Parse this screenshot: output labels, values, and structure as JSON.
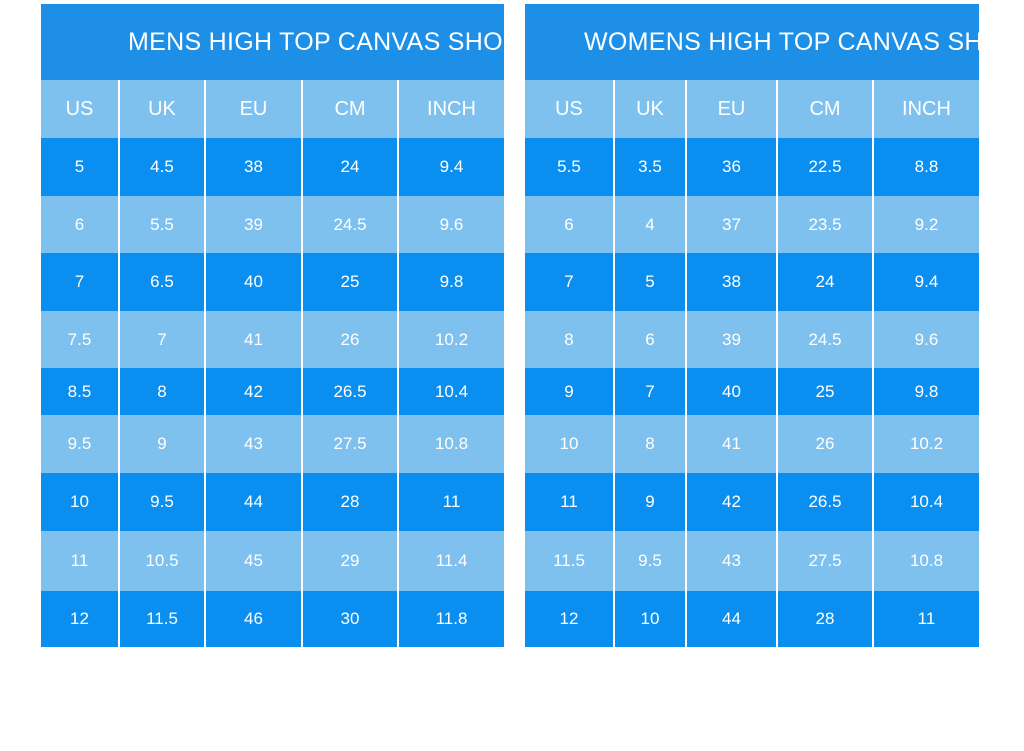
{
  "mens": {
    "title": "MENS HIGH TOP CANVAS SHOE",
    "columns": [
      "US",
      "UK",
      "EU",
      "CM",
      "INCH"
    ],
    "rows": [
      [
        "5",
        "4.5",
        "38",
        "24",
        "9.4"
      ],
      [
        "6",
        "5.5",
        "39",
        "24.5",
        "9.6"
      ],
      [
        "7",
        "6.5",
        "40",
        "25",
        "9.8"
      ],
      [
        "7.5",
        "7",
        "41",
        "26",
        "10.2"
      ],
      [
        "8.5",
        "8",
        "42",
        "26.5",
        "10.4"
      ],
      [
        "9.5",
        "9",
        "43",
        "27.5",
        "10.8"
      ],
      [
        "10",
        "9.5",
        "44",
        "28",
        "11"
      ],
      [
        "11",
        "10.5",
        "45",
        "29",
        "11.4"
      ],
      [
        "12",
        "11.5",
        "46",
        "30",
        "11.8"
      ]
    ]
  },
  "womens": {
    "title": "WOMENS HIGH TOP CANVAS SHOE",
    "columns": [
      "US",
      "UK",
      "EU",
      "CM",
      "INCH"
    ],
    "rows": [
      [
        "5.5",
        "3.5",
        "36",
        "22.5",
        "8.8"
      ],
      [
        "6",
        "4",
        "37",
        "23.5",
        "9.2"
      ],
      [
        "7",
        "5",
        "38",
        "24",
        "9.4"
      ],
      [
        "8",
        "6",
        "39",
        "24.5",
        "9.6"
      ],
      [
        "9",
        "7",
        "40",
        "25",
        "9.8"
      ],
      [
        "10",
        "8",
        "41",
        "26",
        "10.2"
      ],
      [
        "11",
        "9",
        "42",
        "26.5",
        "10.4"
      ],
      [
        "11.5",
        "9.5",
        "43",
        "27.5",
        "10.8"
      ],
      [
        "12",
        "10",
        "44",
        "28",
        "11"
      ]
    ]
  },
  "colors": {
    "title_bg": "#1e8fe6",
    "row_dark": "#0a8ff0",
    "row_light": "#7ec0ee",
    "text": "#ffffff"
  }
}
